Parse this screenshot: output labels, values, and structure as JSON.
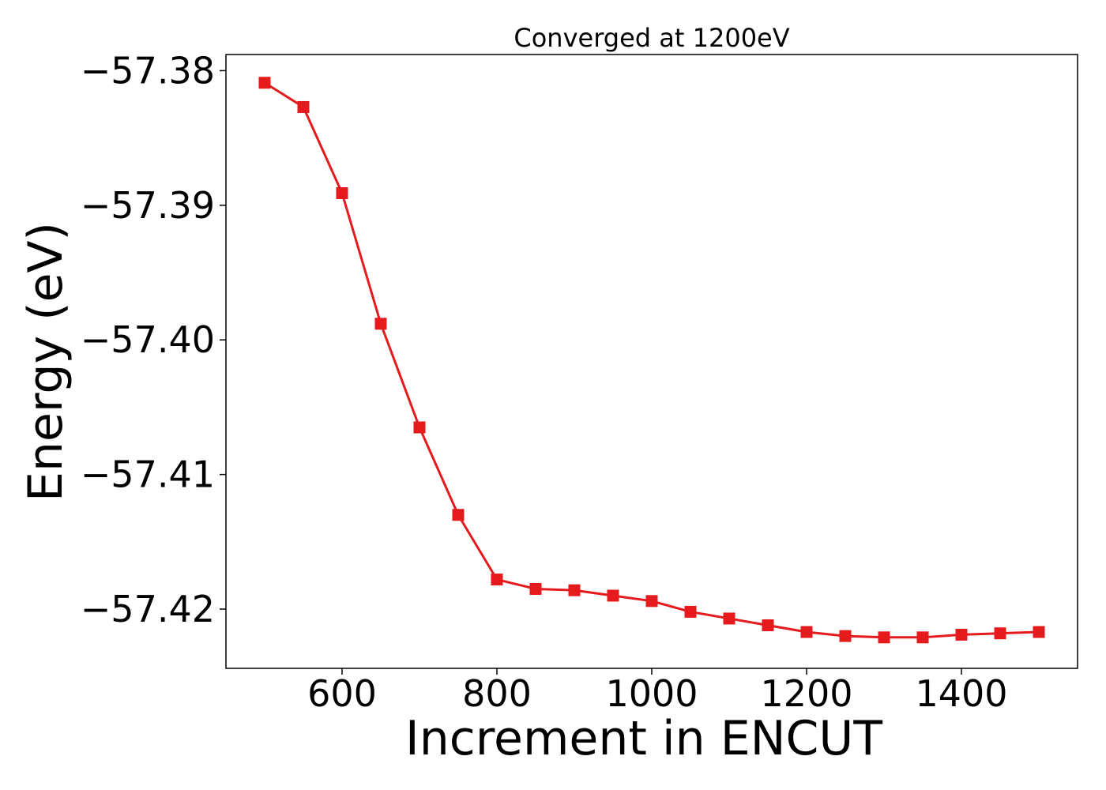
{
  "chart_data": {
    "type": "line",
    "title": "Converged at 1200eV",
    "xlabel": "Increment in ENCUT",
    "ylabel": "Energy (eV)",
    "xlim": [
      450,
      1550
    ],
    "ylim": [
      -57.4244,
      -57.3788
    ],
    "xticks": [
      600,
      800,
      1000,
      1200,
      1400
    ],
    "yticks": [
      -57.38,
      -57.39,
      -57.4,
      -57.41,
      -57.42
    ],
    "ytick_labels": [
      "−57.38",
      "−57.39",
      "−57.40",
      "−57.41",
      "−57.42"
    ],
    "grid": false,
    "series": [
      {
        "color": "#e41a1c",
        "marker": "square",
        "x": [
          500,
          550,
          600,
          650,
          700,
          750,
          800,
          850,
          900,
          950,
          1000,
          1050,
          1100,
          1150,
          1200,
          1250,
          1300,
          1350,
          1400,
          1450,
          1500
        ],
        "y": [
          -57.3809,
          -57.3827,
          -57.3891,
          -57.3988,
          -57.4065,
          -57.413,
          -57.4178,
          -57.4185,
          -57.4186,
          -57.419,
          -57.4194,
          -57.4202,
          -57.4207,
          -57.4212,
          -57.4217,
          -57.422,
          -57.4221,
          -57.4221,
          -57.4219,
          -57.4218,
          -57.4217
        ]
      }
    ]
  }
}
